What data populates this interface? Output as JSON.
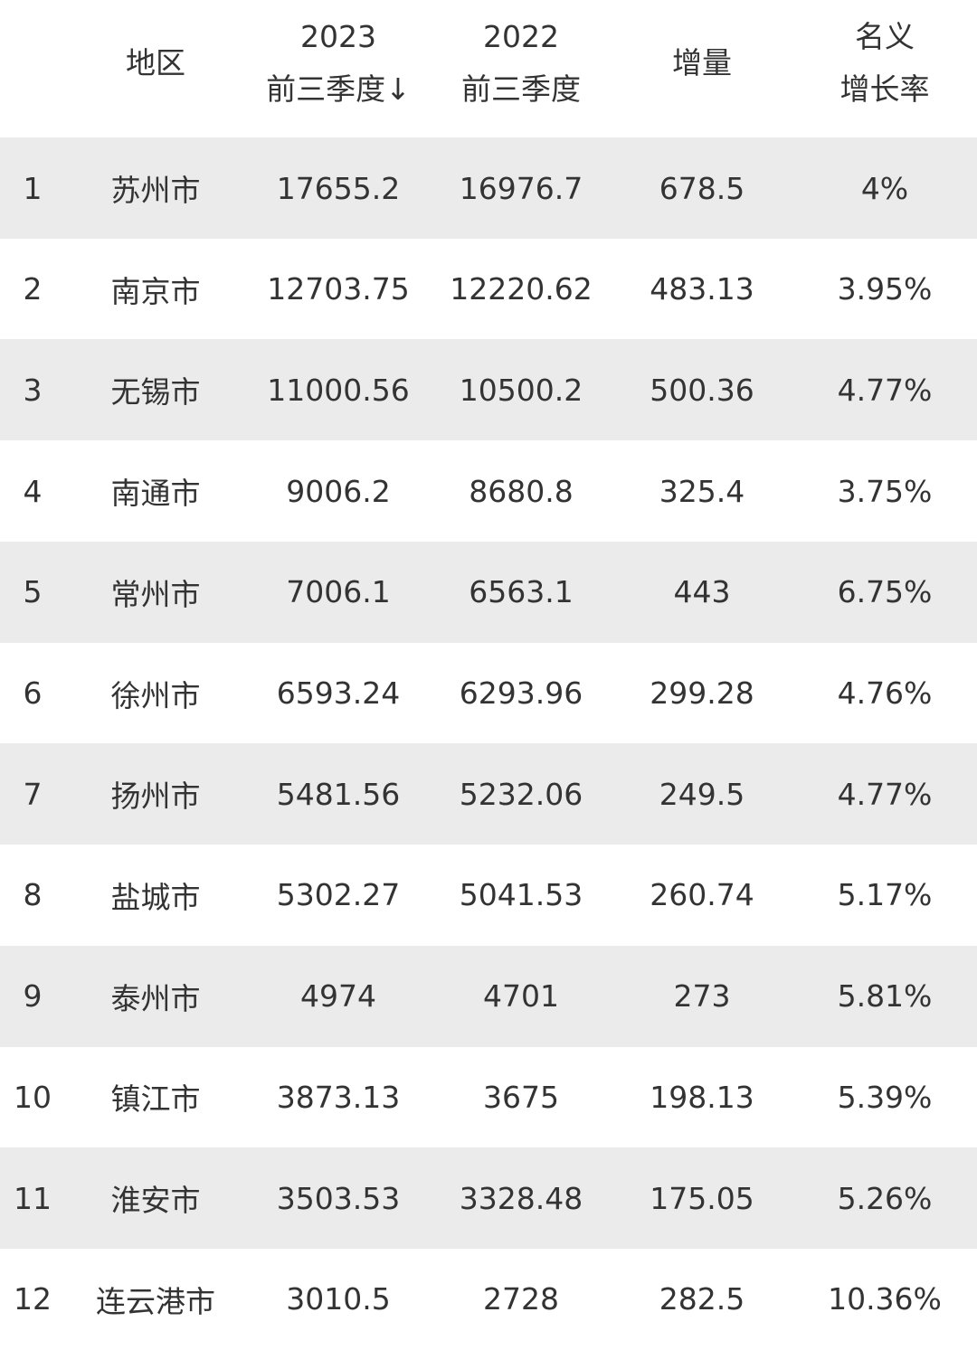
{
  "header": {
    "rank": "",
    "region": "地区",
    "y2023_line1": "2023",
    "y2023_line2": "前三季度↓",
    "y2022_line1": "2022",
    "y2022_line2": "前三季度",
    "increase": "增量",
    "growth_line1": "名义",
    "growth_line2": "增长率"
  },
  "colors": {
    "stripe": "#ebebeb",
    "text": "#333333"
  },
  "rows": [
    {
      "rank": "1",
      "region": "苏州市",
      "y2023": "17655.2",
      "y2022": "16976.7",
      "increase": "678.5",
      "growth": "4%"
    },
    {
      "rank": "2",
      "region": "南京市",
      "y2023": "12703.75",
      "y2022": "12220.62",
      "increase": "483.13",
      "growth": "3.95%"
    },
    {
      "rank": "3",
      "region": "无锡市",
      "y2023": "11000.56",
      "y2022": "10500.2",
      "increase": "500.36",
      "growth": "4.77%"
    },
    {
      "rank": "4",
      "region": "南通市",
      "y2023": "9006.2",
      "y2022": "8680.8",
      "increase": "325.4",
      "growth": "3.75%"
    },
    {
      "rank": "5",
      "region": "常州市",
      "y2023": "7006.1",
      "y2022": "6563.1",
      "increase": "443",
      "growth": "6.75%"
    },
    {
      "rank": "6",
      "region": "徐州市",
      "y2023": "6593.24",
      "y2022": "6293.96",
      "increase": "299.28",
      "growth": "4.76%"
    },
    {
      "rank": "7",
      "region": "扬州市",
      "y2023": "5481.56",
      "y2022": "5232.06",
      "increase": "249.5",
      "growth": "4.77%"
    },
    {
      "rank": "8",
      "region": "盐城市",
      "y2023": "5302.27",
      "y2022": "5041.53",
      "increase": "260.74",
      "growth": "5.17%"
    },
    {
      "rank": "9",
      "region": "泰州市",
      "y2023": "4974",
      "y2022": "4701",
      "increase": "273",
      "growth": "5.81%"
    },
    {
      "rank": "10",
      "region": "镇江市",
      "y2023": "3873.13",
      "y2022": "3675",
      "increase": "198.13",
      "growth": "5.39%"
    },
    {
      "rank": "11",
      "region": "淮安市",
      "y2023": "3503.53",
      "y2022": "3328.48",
      "increase": "175.05",
      "growth": "5.26%"
    },
    {
      "rank": "12",
      "region": "连云港市",
      "y2023": "3010.5",
      "y2022": "2728",
      "increase": "282.5",
      "growth": "10.36%"
    }
  ]
}
